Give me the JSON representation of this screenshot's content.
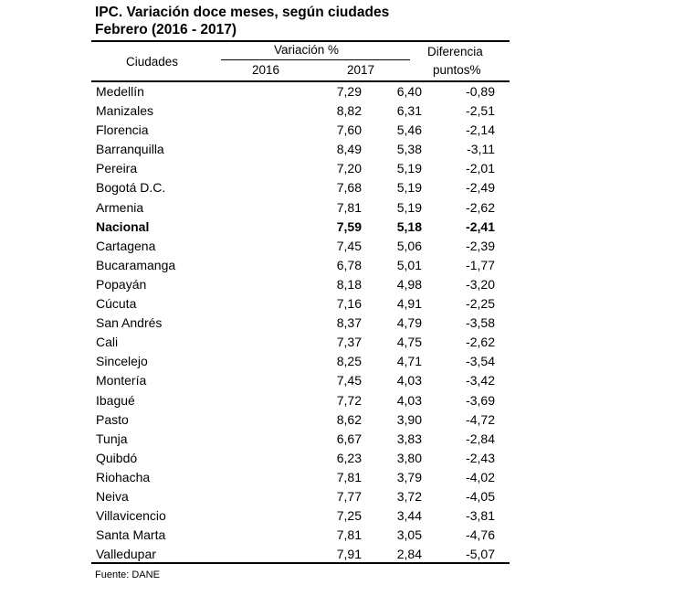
{
  "title": {
    "line1": "IPC. Variación doce meses, según ciudades",
    "line2": "Febrero (2016 - 2017)"
  },
  "header": {
    "city": "Ciudades",
    "variation": "Variación %",
    "year1": "2016",
    "year2": "2017",
    "diff_line1": "Diferencia",
    "diff_line2": "puntos%"
  },
  "rows": [
    {
      "city": "Medellín",
      "v2016": "7,29",
      "v2017": "6,40",
      "diff": "-0,89"
    },
    {
      "city": "Manizales",
      "v2016": "8,82",
      "v2017": "6,31",
      "diff": "-2,51"
    },
    {
      "city": "Florencia",
      "v2016": "7,60",
      "v2017": "5,46",
      "diff": "-2,14"
    },
    {
      "city": "Barranquilla",
      "v2016": "8,49",
      "v2017": "5,38",
      "diff": "-3,11"
    },
    {
      "city": "Pereira",
      "v2016": "7,20",
      "v2017": "5,19",
      "diff": "-2,01"
    },
    {
      "city": "Bogotá D.C.",
      "v2016": "7,68",
      "v2017": "5,19",
      "diff": "-2,49"
    },
    {
      "city": "Armenia",
      "v2016": "7,81",
      "v2017": "5,19",
      "diff": "-2,62"
    },
    {
      "city": "Nacional",
      "v2016": "7,59",
      "v2017": "5,18",
      "diff": "-2,41"
    },
    {
      "city": "Cartagena",
      "v2016": "7,45",
      "v2017": "5,06",
      "diff": "-2,39"
    },
    {
      "city": "Bucaramanga",
      "v2016": "6,78",
      "v2017": "5,01",
      "diff": "-1,77"
    },
    {
      "city": "Popayán",
      "v2016": "8,18",
      "v2017": "4,98",
      "diff": "-3,20"
    },
    {
      "city": "Cúcuta",
      "v2016": "7,16",
      "v2017": "4,91",
      "diff": "-2,25"
    },
    {
      "city": "San Andrés",
      "v2016": "8,37",
      "v2017": "4,79",
      "diff": "-3,58"
    },
    {
      "city": "Cali",
      "v2016": "7,37",
      "v2017": "4,75",
      "diff": "-2,62"
    },
    {
      "city": "Sincelejo",
      "v2016": "8,25",
      "v2017": "4,71",
      "diff": "-3,54"
    },
    {
      "city": "Montería",
      "v2016": "7,45",
      "v2017": "4,03",
      "diff": "-3,42"
    },
    {
      "city": "Ibagué",
      "v2016": "7,72",
      "v2017": "4,03",
      "diff": "-3,69"
    },
    {
      "city": "Pasto",
      "v2016": "8,62",
      "v2017": "3,90",
      "diff": "-4,72"
    },
    {
      "city": "Tunja",
      "v2016": "6,67",
      "v2017": "3,83",
      "diff": "-2,84"
    },
    {
      "city": "Quibdó",
      "v2016": "6,23",
      "v2017": "3,80",
      "diff": "-2,43"
    },
    {
      "city": "Riohacha",
      "v2016": "7,81",
      "v2017": "3,79",
      "diff": "-4,02"
    },
    {
      "city": "Neiva",
      "v2016": "7,77",
      "v2017": "3,72",
      "diff": "-4,05"
    },
    {
      "city": "Villavicencio",
      "v2016": "7,25",
      "v2017": "3,44",
      "diff": "-3,81"
    },
    {
      "city": "Santa Marta",
      "v2016": "7,81",
      "v2017": "3,05",
      "diff": "-4,76"
    },
    {
      "city": "Valledupar",
      "v2016": "7,91",
      "v2017": "2,84",
      "diff": "-5,07"
    }
  ],
  "highlight_city": "Nacional",
  "source": "Fuente: DANE"
}
